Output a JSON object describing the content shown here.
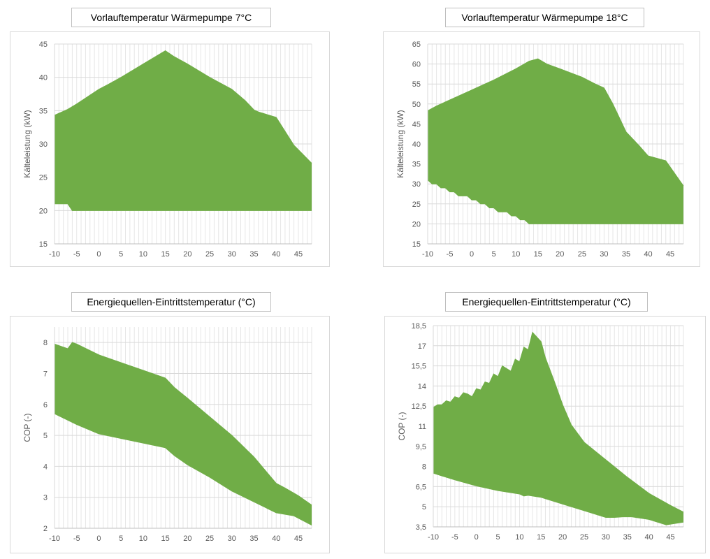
{
  "chart_data": [
    {
      "type": "area",
      "title": "Vorlauftemperatur Wärmepumpe 7°C",
      "xlabel": "",
      "ylabel": "Kälteleistung (kW)",
      "xlim": [
        -10,
        48
      ],
      "ylim": [
        15,
        45
      ],
      "yticks": [
        "15",
        "20",
        "25",
        "30",
        "35",
        "40",
        "45"
      ],
      "ytick_values": [
        15,
        20,
        25,
        30,
        35,
        40,
        45
      ],
      "xticks": [
        "-10",
        "-5",
        "0",
        "5",
        "10",
        "15",
        "20",
        "25",
        "30",
        "35",
        "40",
        "45"
      ],
      "xtick_values": [
        -10,
        -5,
        0,
        5,
        10,
        15,
        20,
        25,
        30,
        35,
        40,
        45
      ],
      "grid": true,
      "fill_color": "#70AD47",
      "series": [
        {
          "name": "upper",
          "x": [
            -10,
            -7,
            -5,
            0,
            2,
            5,
            10,
            15,
            17,
            20,
            25,
            30,
            33,
            35,
            36,
            40,
            44,
            48
          ],
          "values": [
            34.3,
            35.2,
            36,
            38.2,
            38.9,
            40,
            42,
            44,
            43.1,
            42,
            40,
            38.2,
            36.5,
            35.1,
            34.8,
            34,
            29.8,
            27.1
          ]
        },
        {
          "name": "lower",
          "x": [
            -10,
            -7,
            -6,
            48
          ],
          "values": [
            21,
            21,
            20,
            20
          ]
        }
      ]
    },
    {
      "type": "area",
      "title": "Vorlauftemperatur Wärmepumpe 18°C",
      "xlabel": "",
      "ylabel": "Kälteleistung (kW)",
      "xlim": [
        -10,
        48
      ],
      "ylim": [
        15,
        65
      ],
      "yticks": [
        "15",
        "20",
        "25",
        "30",
        "35",
        "40",
        "45",
        "50",
        "55",
        "60",
        "65"
      ],
      "ytick_values": [
        15,
        20,
        25,
        30,
        35,
        40,
        45,
        50,
        55,
        60,
        65
      ],
      "xticks": [
        "-10",
        "-5",
        "0",
        "5",
        "10",
        "15",
        "20",
        "25",
        "30",
        "35",
        "40",
        "45"
      ],
      "xtick_values": [
        -10,
        -5,
        0,
        5,
        10,
        15,
        20,
        25,
        30,
        35,
        40,
        45
      ],
      "grid": true,
      "fill_color": "#70AD47",
      "series": [
        {
          "name": "upper",
          "x": [
            -10,
            -8,
            -5,
            0,
            5,
            10,
            13,
            15,
            17,
            20,
            25,
            28,
            30,
            32,
            35,
            38,
            40,
            44,
            48
          ],
          "values": [
            48.3,
            49.5,
            51,
            53.5,
            56,
            58.8,
            60.7,
            61.3,
            60,
            58.8,
            56.7,
            55,
            54,
            50,
            43,
            39.5,
            37,
            35.8,
            29.5
          ]
        },
        {
          "name": "lower",
          "x": [
            -10,
            -9,
            -8,
            -7,
            -6,
            -5,
            -4,
            -3,
            -1,
            0,
            1,
            2,
            3,
            4,
            5,
            6,
            8,
            9,
            10,
            11,
            12,
            13,
            48
          ],
          "values": [
            31,
            30,
            30,
            29,
            29,
            28,
            28,
            27,
            27,
            26,
            26,
            25,
            25,
            24,
            24,
            23,
            23,
            22,
            22,
            21,
            21,
            20,
            20
          ]
        }
      ]
    },
    {
      "type": "area",
      "title": "Energiequellen-Eintrittstemperatur (°C)",
      "xlabel": "",
      "ylabel": "COP (-)",
      "xlim": [
        -10,
        48
      ],
      "ylim": [
        2,
        8.5
      ],
      "yticks": [
        "2",
        "3",
        "4",
        "5",
        "6",
        "7",
        "8"
      ],
      "ytick_values": [
        2,
        3,
        4,
        5,
        6,
        7,
        8
      ],
      "xticks": [
        "-10",
        "-5",
        "0",
        "5",
        "10",
        "15",
        "20",
        "25",
        "30",
        "35",
        "40",
        "45"
      ],
      "xtick_values": [
        -10,
        -5,
        0,
        5,
        10,
        15,
        20,
        25,
        30,
        35,
        40,
        45
      ],
      "grid": true,
      "fill_color": "#70AD47",
      "series": [
        {
          "name": "upper",
          "x": [
            -10,
            -8,
            -7,
            -6,
            -5,
            0,
            5,
            10,
            15,
            17,
            20,
            25,
            30,
            35,
            40,
            42,
            45,
            48
          ],
          "values": [
            7.95,
            7.85,
            7.8,
            8.0,
            7.95,
            7.6,
            7.35,
            7.1,
            6.85,
            6.55,
            6.2,
            5.6,
            5.0,
            4.3,
            3.45,
            3.3,
            3.05,
            2.75
          ]
        },
        {
          "name": "lower",
          "x": [
            -10,
            -5,
            0,
            5,
            10,
            15,
            17,
            20,
            25,
            30,
            35,
            40,
            44,
            48
          ],
          "values": [
            5.7,
            5.35,
            5.05,
            4.9,
            4.75,
            4.6,
            4.35,
            4.05,
            3.65,
            3.2,
            2.85,
            2.5,
            2.4,
            2.1
          ]
        }
      ]
    },
    {
      "type": "area",
      "title": "Energiequellen-Eintrittstemperatur (°C)",
      "xlabel": "",
      "ylabel": "COP (-)",
      "xlim": [
        -10,
        48
      ],
      "ylim": [
        3.5,
        18.5
      ],
      "yticks": [
        "3,5",
        "5",
        "6,5",
        "8",
        "9,5",
        "11",
        "12,5",
        "14",
        "15,5",
        "17",
        "18,5"
      ],
      "ytick_values": [
        3.5,
        5,
        6.5,
        8,
        9.5,
        11,
        12.5,
        14,
        15.5,
        17,
        18.5
      ],
      "xticks": [
        "-10",
        "-5",
        "0",
        "5",
        "10",
        "15",
        "20",
        "25",
        "30",
        "35",
        "40",
        "45"
      ],
      "xtick_values": [
        -10,
        -5,
        0,
        5,
        10,
        15,
        20,
        25,
        30,
        35,
        40,
        45
      ],
      "grid": true,
      "fill_color": "#70AD47",
      "series": [
        {
          "name": "upper",
          "x": [
            -10,
            -9,
            -8,
            -7,
            -6,
            -5,
            -4,
            -3,
            -2,
            -1,
            0,
            1,
            2,
            3,
            4,
            5,
            6,
            7,
            8,
            9,
            10,
            11,
            12,
            13,
            15,
            16,
            18,
            20,
            22,
            25,
            30,
            35,
            40,
            45,
            48
          ],
          "values": [
            12.4,
            12.6,
            12.6,
            12.9,
            12.8,
            13.2,
            13.1,
            13.5,
            13.4,
            13.2,
            13.8,
            13.7,
            14.3,
            14.2,
            14.9,
            14.7,
            15.5,
            15.3,
            15.1,
            16.0,
            15.8,
            16.9,
            16.7,
            18.0,
            17.3,
            16.1,
            14.4,
            12.6,
            11.1,
            9.8,
            8.5,
            7.2,
            6.0,
            5.1,
            4.6
          ]
        },
        {
          "name": "lower",
          "x": [
            -10,
            -5,
            0,
            5,
            10,
            11,
            12,
            15,
            20,
            25,
            30,
            32,
            34,
            36,
            40,
            44,
            48
          ],
          "values": [
            7.5,
            7.0,
            6.55,
            6.2,
            5.95,
            5.8,
            5.85,
            5.7,
            5.2,
            4.7,
            4.2,
            4.2,
            4.25,
            4.25,
            4.05,
            3.65,
            3.85
          ]
        }
      ]
    }
  ]
}
